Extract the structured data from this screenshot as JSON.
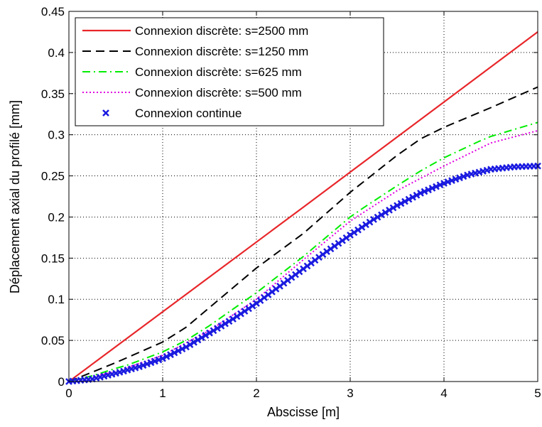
{
  "chart_data": {
    "type": "line",
    "xlabel": "Abscisse [m]",
    "ylabel": "Déplacement axial du profilé [mm]",
    "xlim": [
      0,
      5
    ],
    "ylim": [
      0,
      0.45
    ],
    "xticks": [
      "0",
      "1",
      "2",
      "3",
      "4",
      "5"
    ],
    "yticks": [
      "0",
      "0.05",
      "0.1",
      "0.15",
      "0.2",
      "0.25",
      "0.3",
      "0.35",
      "0.4",
      "0.45"
    ],
    "grid": true,
    "legend_position": "top-left",
    "series": [
      {
        "name": "Connexion discrète: s=2500 mm",
        "color": "#e8262a",
        "style": "solid",
        "x": [
          0,
          2.5,
          5
        ],
        "y": [
          0,
          0.212,
          0.425
        ]
      },
      {
        "name": "Connexion discrète: s=1250 mm",
        "color": "#000000",
        "style": "dashed",
        "x": [
          0,
          0.5,
          1,
          1.25,
          1.5,
          2,
          2.5,
          3,
          3.5,
          3.75,
          4,
          4.5,
          5
        ],
        "y": [
          0,
          0.023,
          0.048,
          0.066,
          0.09,
          0.138,
          0.18,
          0.23,
          0.275,
          0.295,
          0.309,
          0.333,
          0.358
        ]
      },
      {
        "name": "Connexion discrète: s=625 mm",
        "color": "#00ee00",
        "style": "dashdot",
        "x": [
          0,
          0.25,
          0.5,
          0.625,
          1,
          1.25,
          1.5,
          1.875,
          2,
          2.5,
          3,
          3.125,
          3.5,
          3.75,
          4,
          4.375,
          4.5,
          5
        ],
        "y": [
          0,
          0.007,
          0.016,
          0.02,
          0.036,
          0.05,
          0.068,
          0.098,
          0.108,
          0.152,
          0.2,
          0.21,
          0.238,
          0.256,
          0.272,
          0.292,
          0.298,
          0.315
        ]
      },
      {
        "name": "Connexion discrète: s=500 mm",
        "color": "#e000e0",
        "style": "dotted",
        "x": [
          0,
          0.5,
          1,
          1.5,
          2,
          2.5,
          3,
          3.5,
          4,
          4.5,
          5
        ],
        "y": [
          0,
          0.012,
          0.032,
          0.062,
          0.1,
          0.148,
          0.195,
          0.232,
          0.262,
          0.29,
          0.305
        ]
      },
      {
        "name": "Connexion continue",
        "color": "#1a1ae0",
        "style": "markers-x",
        "x": [
          0,
          0.25,
          0.5,
          0.75,
          1,
          1.25,
          1.5,
          1.75,
          2,
          2.25,
          2.5,
          2.75,
          3,
          3.25,
          3.5,
          3.75,
          4,
          4.25,
          4.5,
          4.75,
          5
        ],
        "y": [
          0,
          0.003,
          0.01,
          0.018,
          0.028,
          0.042,
          0.059,
          0.076,
          0.095,
          0.116,
          0.137,
          0.158,
          0.178,
          0.197,
          0.214,
          0.229,
          0.241,
          0.251,
          0.258,
          0.261,
          0.262
        ]
      }
    ]
  }
}
